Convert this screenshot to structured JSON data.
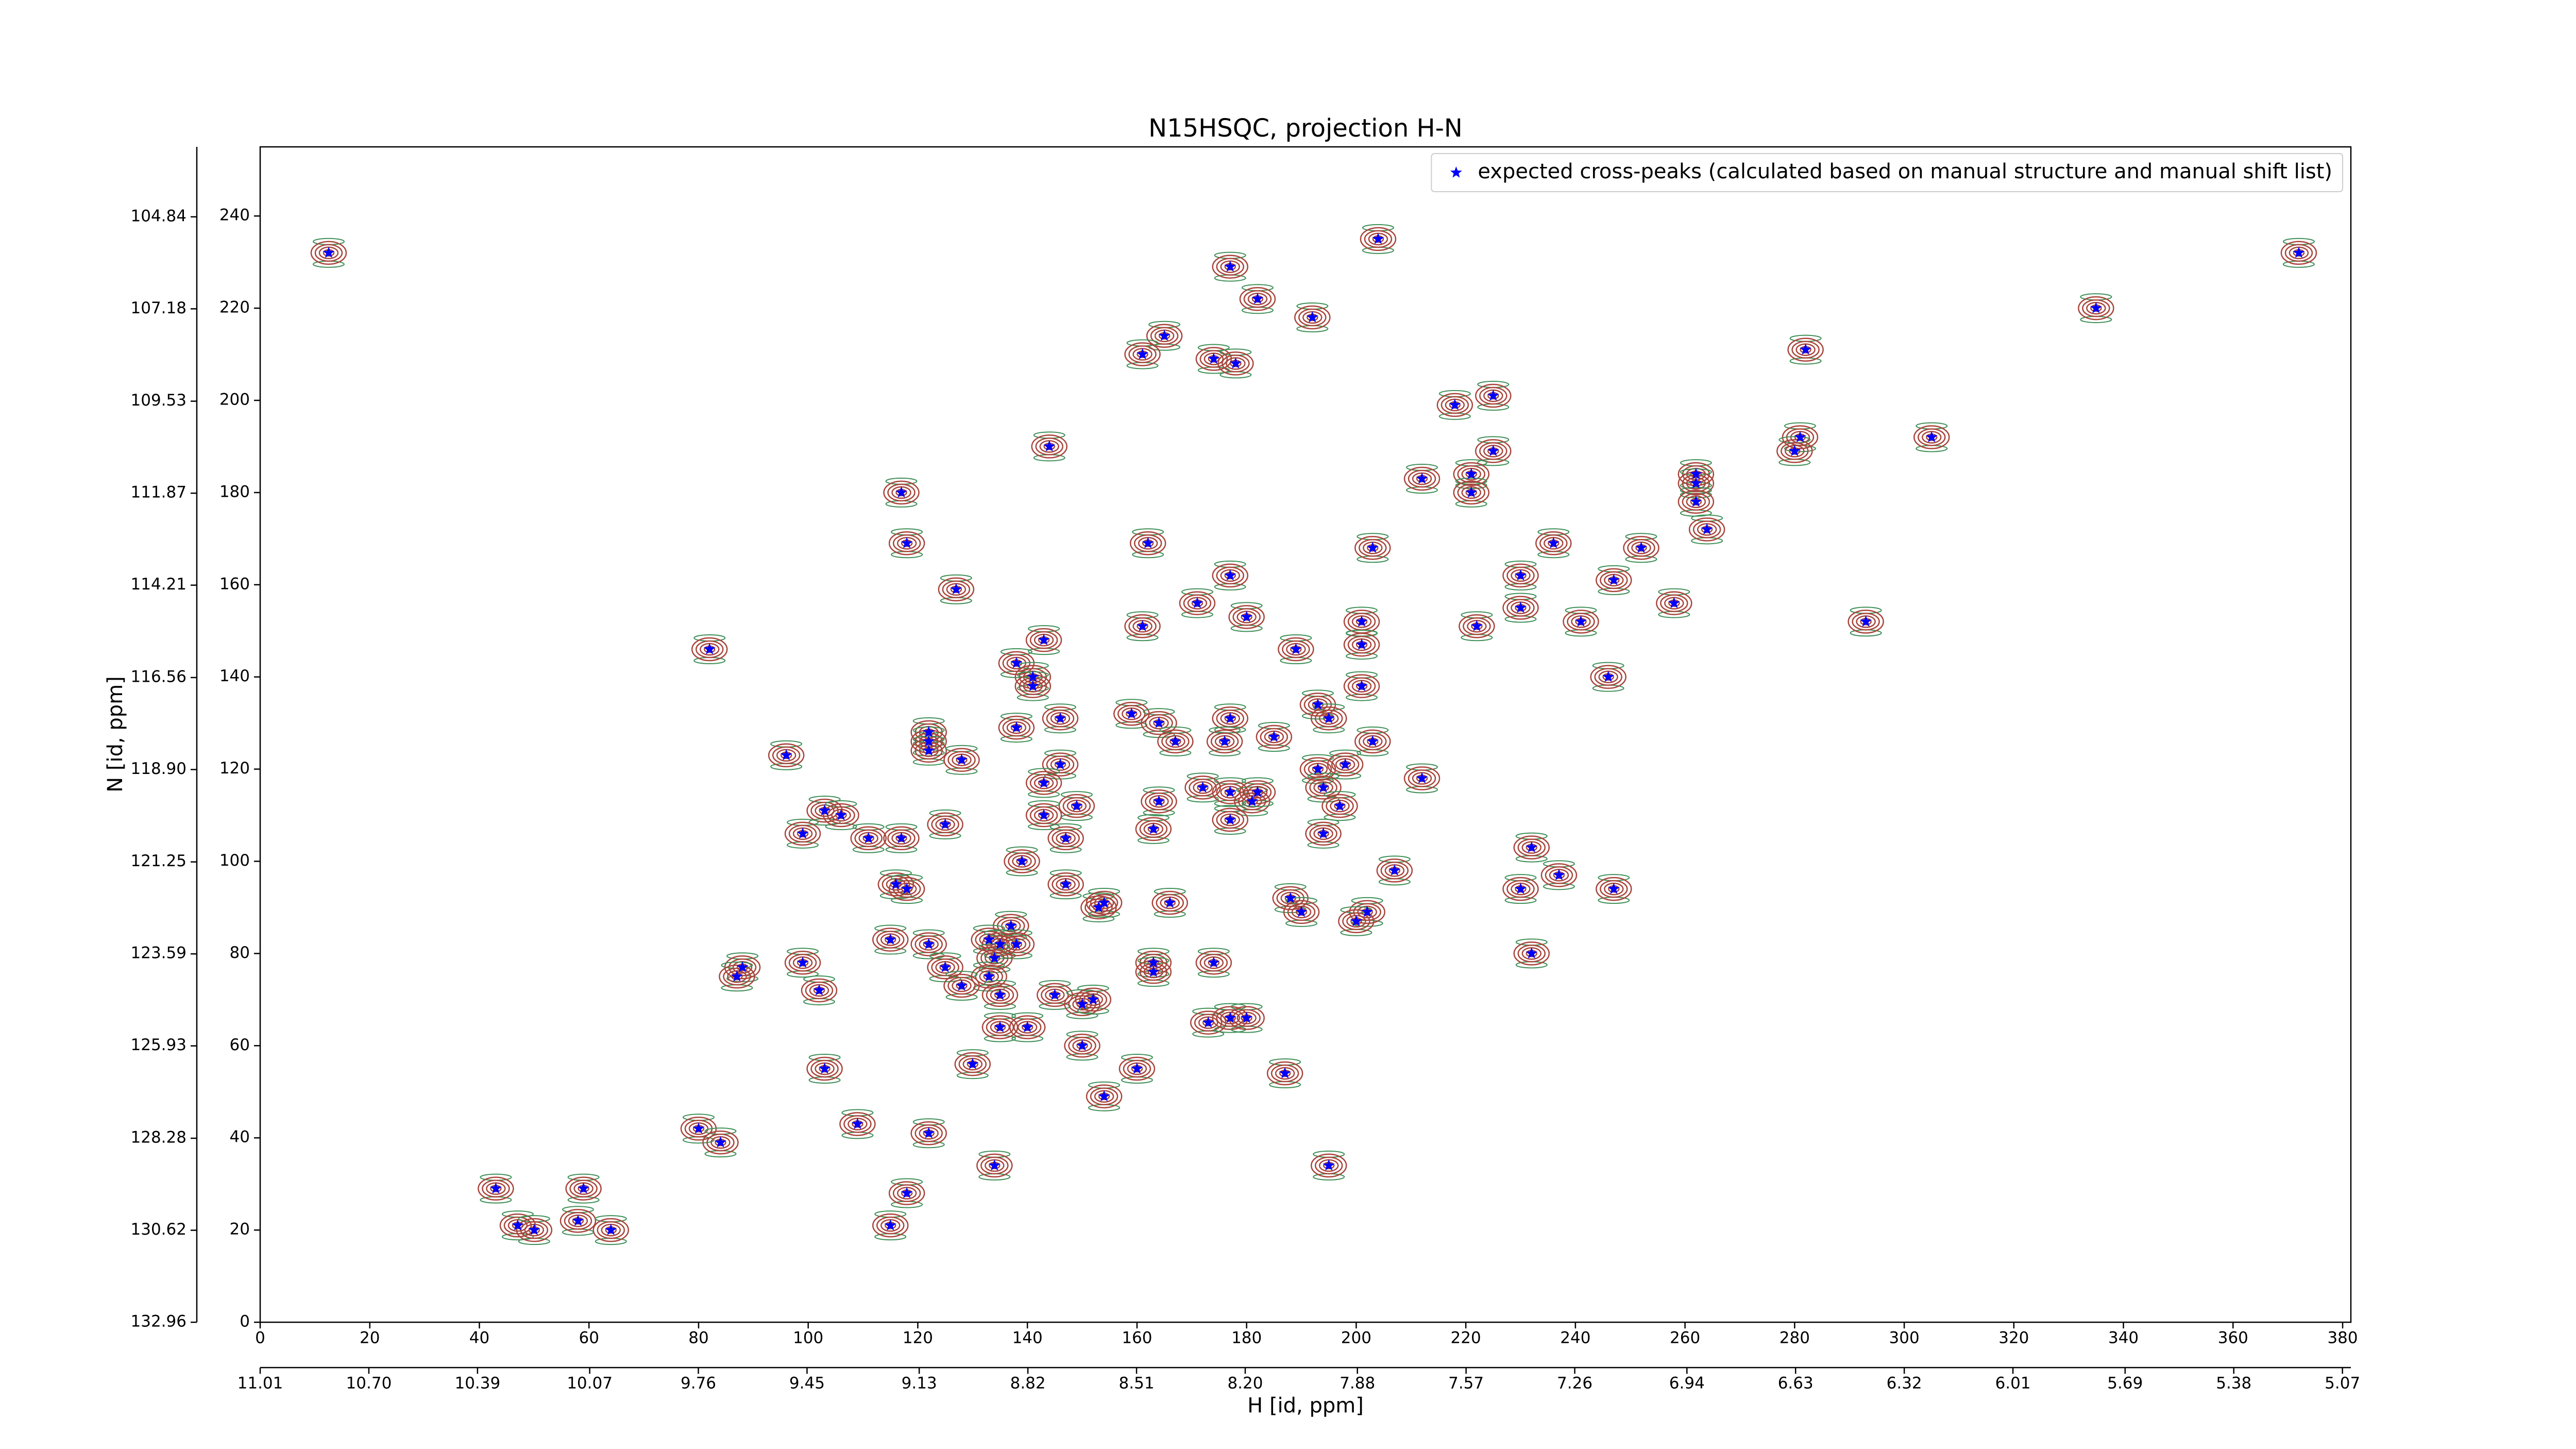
{
  "chart_data": {
    "type": "scatter",
    "title": "N15HSQC, projection H-N",
    "x_label": "H [id, ppm]",
    "y_label": "N [id, ppm]",
    "xlim": [
      0,
      381.5
    ],
    "ylim": [
      0,
      255
    ],
    "xticks": [
      0,
      20,
      40,
      60,
      80,
      100,
      120,
      140,
      160,
      180,
      200,
      220,
      240,
      260,
      280,
      300,
      320,
      340,
      360,
      380
    ],
    "yticks": [
      0,
      20,
      40,
      60,
      80,
      100,
      120,
      140,
      160,
      180,
      200,
      220,
      240
    ],
    "x2lim": [
      11.01,
      5.046
    ],
    "x2ticks": [
      11.01,
      {
        "value": 10.7,
        "label": "10.70"
      },
      10.39,
      10.07,
      9.76,
      9.45,
      9.13,
      8.82,
      8.51,
      {
        "value": 8.2,
        "label": "8.20"
      },
      7.88,
      7.57,
      7.26,
      6.94,
      6.63,
      6.32,
      6.01,
      5.69,
      5.38,
      5.07
    ],
    "y2lim": [
      132.96,
      103.06
    ],
    "y2ticks": [
      132.96,
      130.62,
      128.28,
      125.93,
      123.59,
      121.25,
      {
        "value": 118.9,
        "label": "118.90"
      },
      116.56,
      114.21,
      111.87,
      109.53,
      107.18,
      104.84
    ],
    "legend": "upper right",
    "contour_colors": [
      "#a8453b",
      "#3f8f58"
    ],
    "series": [
      {
        "name": "expected cross-peaks (calculated based on manual structure and manual shift list)",
        "color": "#0000ff",
        "x": [
          12.5,
          204,
          372,
          177,
          182,
          192,
          335,
          165,
          161,
          174,
          178,
          282,
          218,
          225,
          144,
          281,
          280,
          305,
          225,
          221,
          212,
          221,
          117,
          262,
          262,
          262,
          264,
          118,
          162,
          203,
          236,
          252,
          177,
          230,
          247,
          127,
          171,
          230,
          258,
          293,
          241,
          180,
          201,
          222,
          161,
          82,
          143,
          189,
          201,
          138,
          141,
          246,
          141,
          201,
          193,
          159,
          164,
          177,
          122,
          122,
          146,
          138,
          195,
          167,
          176,
          185,
          203,
          122,
          96,
          128,
          146,
          193,
          198,
          212,
          143,
          172,
          177,
          181,
          182,
          194,
          149,
          164,
          103,
          106,
          143,
          177,
          197,
          125,
          163,
          99,
          111,
          117,
          147,
          194,
          139,
          232,
          116,
          118,
          147,
          207,
          230,
          237,
          247,
          153,
          166,
          188,
          190,
          154,
          202,
          200,
          137,
          115,
          122,
          133,
          135,
          138,
          232,
          88,
          87,
          99,
          125,
          134,
          163,
          174,
          163,
          133,
          128,
          102,
          135,
          145,
          150,
          152,
          135,
          140,
          173,
          177,
          180,
          150,
          130,
          103,
          160,
          187,
          154,
          109,
          80,
          84,
          122,
          134,
          195,
          43,
          59,
          118,
          47,
          50,
          58,
          64,
          115
        ],
        "y": [
          232,
          235,
          232,
          229,
          222,
          218,
          220,
          214,
          210,
          209,
          208,
          211,
          199,
          201,
          190,
          192,
          189,
          192,
          189,
          184,
          183,
          180,
          180,
          184,
          182,
          178,
          172,
          169,
          169,
          168,
          169,
          168,
          162,
          162,
          161,
          159,
          156,
          155,
          156,
          152,
          152,
          153,
          152,
          151,
          151,
          146,
          148,
          146,
          147,
          143,
          140,
          140,
          138,
          138,
          134,
          132,
          130,
          131,
          128,
          126,
          131,
          129,
          131,
          126,
          126,
          127,
          126,
          124,
          123,
          122,
          121,
          120,
          121,
          118,
          117,
          116,
          115,
          113,
          115,
          116,
          112,
          113,
          111,
          110,
          110,
          109,
          112,
          108,
          107,
          106,
          105,
          105,
          105,
          106,
          100,
          103,
          95,
          94,
          95,
          98,
          94,
          97,
          94,
          90,
          91,
          92,
          89,
          91,
          89,
          87,
          86,
          83,
          82,
          83,
          82,
          82,
          80,
          77,
          75,
          78,
          77,
          79,
          78,
          78,
          76,
          75,
          73,
          72,
          71,
          71,
          69,
          70,
          64,
          64,
          65,
          66,
          66,
          60,
          56,
          55,
          55,
          54,
          49,
          43,
          42,
          39,
          41,
          34,
          34,
          29,
          29,
          28,
          21,
          20,
          22,
          20,
          21
        ]
      }
    ]
  }
}
